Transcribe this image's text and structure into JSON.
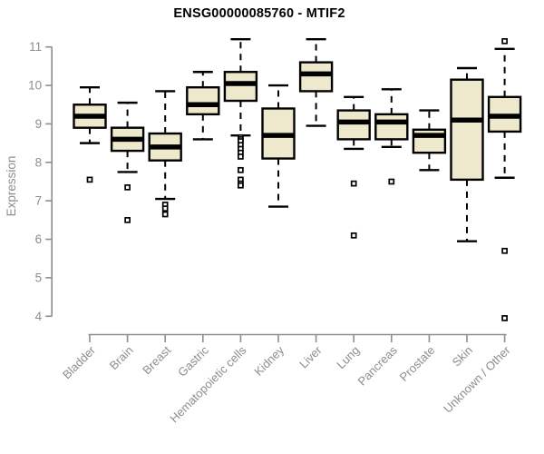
{
  "chart_data": {
    "type": "boxplot",
    "title": "ENSG00000085760 - MTIF2",
    "ylabel": "Expression",
    "xlabel": "",
    "ylim": [
      3.8,
      11.35
    ],
    "yticks": [
      4,
      5,
      6,
      7,
      8,
      9,
      10,
      11
    ],
    "grid": false,
    "legend": "none",
    "colors": {
      "box_fill": "#EEE8CD",
      "box_stroke": "#000000",
      "median": "#000000",
      "axis": "#8d8d8d",
      "tick_label": "#8d8d8d",
      "title": "#000000",
      "background": "#ffffff"
    },
    "categories": [
      "Bladder",
      "Brain",
      "Breast",
      "Gastric",
      "Hematopoietic cells",
      "Kidney",
      "Liver",
      "Lung",
      "Pancreas",
      "Prostate",
      "Skin",
      "Unknown / Other"
    ],
    "series": [
      {
        "name": "Bladder",
        "whisker_low": 8.5,
        "q1": 8.9,
        "median": 9.2,
        "q3": 9.5,
        "whisker_high": 9.95,
        "outliers": [
          7.55
        ]
      },
      {
        "name": "Brain",
        "whisker_low": 7.75,
        "q1": 8.3,
        "median": 8.6,
        "q3": 8.9,
        "whisker_high": 9.55,
        "outliers": [
          7.35,
          6.5
        ]
      },
      {
        "name": "Breast",
        "whisker_low": 7.05,
        "q1": 8.05,
        "median": 8.4,
        "q3": 8.75,
        "whisker_high": 9.85,
        "outliers": [
          6.9,
          6.8,
          6.65
        ]
      },
      {
        "name": "Gastric",
        "whisker_low": 8.6,
        "q1": 9.25,
        "median": 9.5,
        "q3": 9.95,
        "whisker_high": 10.35,
        "outliers": []
      },
      {
        "name": "Hematopoietic cells",
        "whisker_low": 8.7,
        "q1": 9.6,
        "median": 10.05,
        "q3": 10.35,
        "whisker_high": 11.2,
        "outliers": [
          8.65,
          8.6,
          8.55,
          8.45,
          8.35,
          8.25,
          8.15,
          7.8,
          7.55,
          7.45,
          7.4
        ]
      },
      {
        "name": "Kidney",
        "whisker_low": 6.85,
        "q1": 8.1,
        "median": 8.7,
        "q3": 9.4,
        "whisker_high": 10.0,
        "outliers": []
      },
      {
        "name": "Liver",
        "whisker_low": 8.95,
        "q1": 9.85,
        "median": 10.3,
        "q3": 10.6,
        "whisker_high": 11.2,
        "outliers": []
      },
      {
        "name": "Lung",
        "whisker_low": 8.35,
        "q1": 8.6,
        "median": 9.05,
        "q3": 9.35,
        "whisker_high": 9.7,
        "outliers": [
          7.45,
          6.1
        ]
      },
      {
        "name": "Pancreas",
        "whisker_low": 8.4,
        "q1": 8.6,
        "median": 9.05,
        "q3": 9.25,
        "whisker_high": 9.9,
        "outliers": [
          7.5
        ]
      },
      {
        "name": "Prostate",
        "whisker_low": 7.8,
        "q1": 8.25,
        "median": 8.7,
        "q3": 8.85,
        "whisker_high": 9.35,
        "outliers": []
      },
      {
        "name": "Skin",
        "whisker_low": 5.95,
        "q1": 7.55,
        "median": 9.1,
        "q3": 10.15,
        "whisker_high": 10.45,
        "outliers": []
      },
      {
        "name": "Unknown / Other",
        "whisker_low": 7.6,
        "q1": 8.8,
        "median": 9.2,
        "q3": 9.7,
        "whisker_high": 10.95,
        "outliers": [
          11.15,
          5.7,
          3.95
        ]
      }
    ]
  }
}
